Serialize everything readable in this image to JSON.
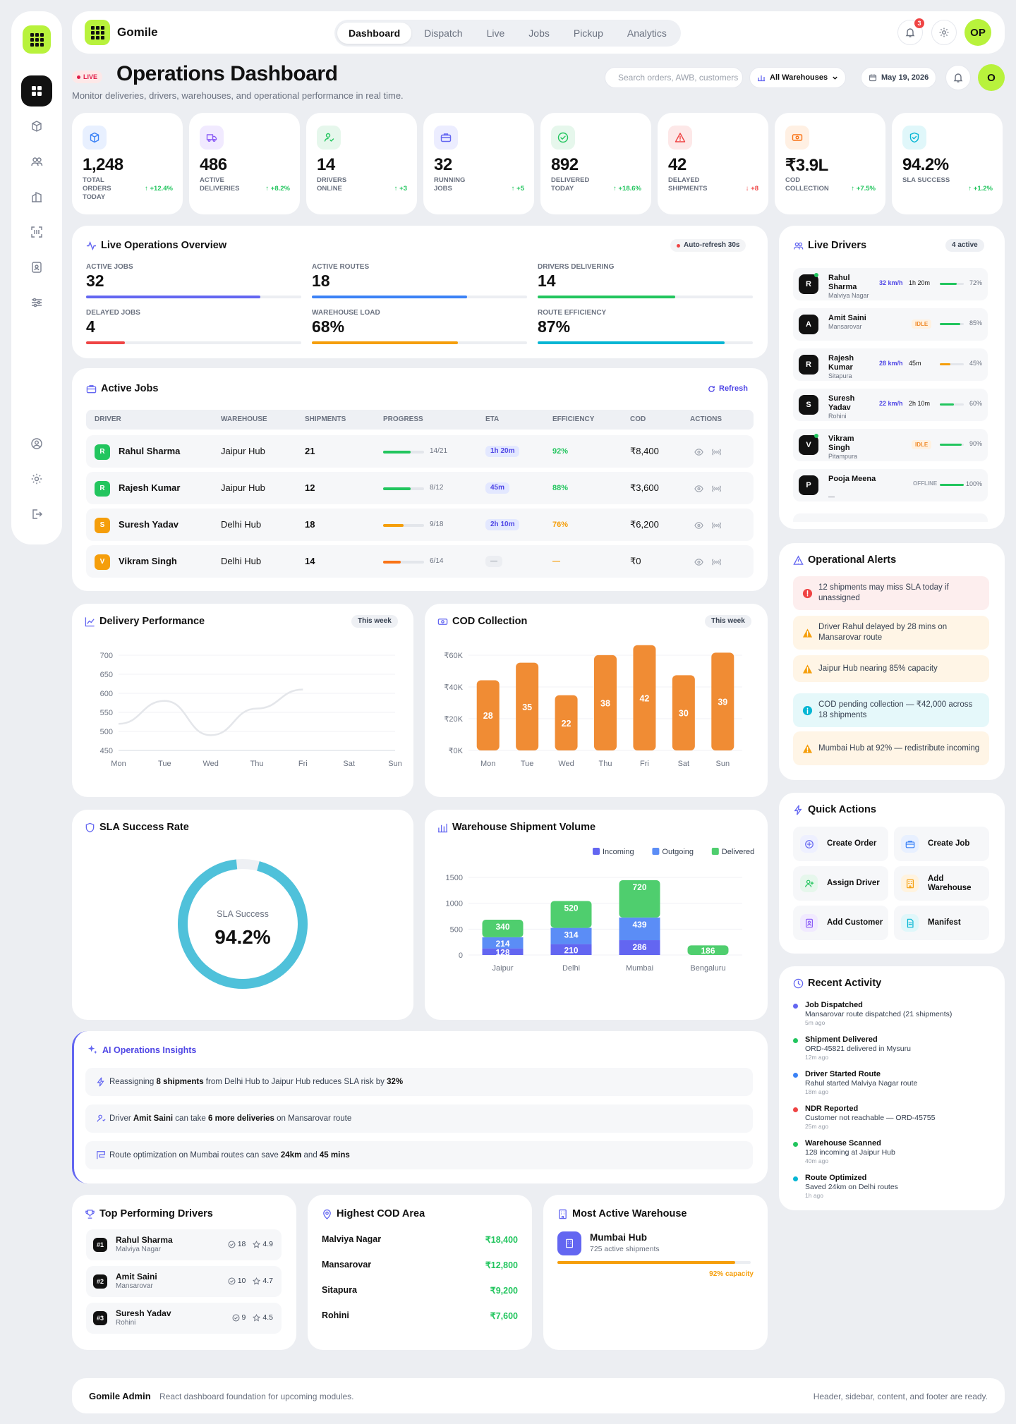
{
  "brand": "Gomile",
  "nav": [
    "Dashboard",
    "Dispatch",
    "Live",
    "Jobs",
    "Pickup",
    "Analytics"
  ],
  "notif_count": "3",
  "user_initials": "OP",
  "user_initial_short": "O",
  "live_label": "LIVE",
  "title": "Operations Dashboard",
  "subtitle": "Monitor deliveries, drivers, warehouses, and operational performance in real time.",
  "search_placeholder": "Search orders, AWB, customers",
  "warehouse_select": "All Warehouses",
  "date": "May 19, 2026",
  "kpis": [
    {
      "value": "1,248",
      "label": "Total Orders Today",
      "delta": "↑ +12.4%",
      "color": "#3b82f6",
      "bg": "#e8f0ff",
      "icon": "box-icon"
    },
    {
      "value": "486",
      "label": "Active Deliveries",
      "delta": "↑ +8.2%",
      "color": "#8b5cf6",
      "bg": "#f1eaff",
      "icon": "truck-icon"
    },
    {
      "value": "14",
      "label": "Drivers Online",
      "delta": "↑ +3",
      "color": "#22c55e",
      "bg": "#e6f7ec",
      "icon": "user-check-icon"
    },
    {
      "value": "32",
      "label": "Running Jobs",
      "delta": "↑ +5",
      "color": "#6366f1",
      "bg": "#ecedff",
      "icon": "briefcase-icon"
    },
    {
      "value": "892",
      "label": "Delivered Today",
      "delta": "↑ +18.6%",
      "color": "#22c55e",
      "bg": "#e6f7ec",
      "icon": "check-circle-icon"
    },
    {
      "value": "42",
      "label": "Delayed Shipments",
      "delta": "↓ +8",
      "color": "#ef4444",
      "bg": "#fde8e8",
      "icon": "alert-triangle-icon"
    },
    {
      "value": "₹3.9L",
      "label": "COD Collection",
      "delta": "↑ +7.5%",
      "color": "#f97316",
      "bg": "#fff0e3",
      "icon": "cash-icon"
    },
    {
      "value": "94.2%",
      "label": "SLA Success",
      "delta": "↑ +1.2%",
      "color": "#06b6d4",
      "bg": "#e0f7fa",
      "icon": "shield-check-icon"
    }
  ],
  "overview": {
    "title": "Live Operations Overview",
    "refresh": "Auto-refresh 30s",
    "items": [
      {
        "label": "Active Jobs",
        "value": "32",
        "pct": 0.81,
        "color": "#6366f1"
      },
      {
        "label": "Active Routes",
        "value": "18",
        "pct": 0.72,
        "color": "#3b82f6"
      },
      {
        "label": "Drivers Delivering",
        "value": "14",
        "pct": 0.64,
        "color": "#22c55e"
      },
      {
        "label": "Delayed Jobs",
        "value": "4",
        "pct": 0.18,
        "color": "#ef4444"
      },
      {
        "label": "Warehouse Load",
        "value": "68%",
        "pct": 0.68,
        "color": "#f59e0b"
      },
      {
        "label": "Route Efficiency",
        "value": "87%",
        "pct": 0.87,
        "color": "#06b6d4"
      }
    ]
  },
  "jobs": {
    "title": "Active Jobs",
    "refresh": "Refresh",
    "headers": [
      "DRIVER",
      "WAREHOUSE",
      "SHIPMENTS",
      "PROGRESS",
      "ETA",
      "EFFICIENCY",
      "COD",
      "ACTIONS"
    ],
    "rows": [
      {
        "initial": "R",
        "avatar": "#22c55e",
        "driver": "Rahul Sharma",
        "warehouse": "Jaipur Hub",
        "shipments": "21",
        "progress": "14/21",
        "pct": 0.67,
        "pcolor": "#22c55e",
        "eta": "1h 20m",
        "eff": "92%",
        "effcolor": "#22c55e",
        "cod": "₹8,400"
      },
      {
        "initial": "R",
        "avatar": "#22c55e",
        "driver": "Rajesh Kumar",
        "warehouse": "Jaipur Hub",
        "shipments": "12",
        "progress": "8/12",
        "pct": 0.67,
        "pcolor": "#22c55e",
        "eta": "45m",
        "eff": "88%",
        "effcolor": "#22c55e",
        "cod": "₹3,600"
      },
      {
        "initial": "S",
        "avatar": "#f59e0b",
        "driver": "Suresh Yadav",
        "warehouse": "Delhi Hub",
        "shipments": "18",
        "progress": "9/18",
        "pct": 0.5,
        "pcolor": "#f59e0b",
        "eta": "2h 10m",
        "eff": "76%",
        "effcolor": "#f59e0b",
        "cod": "₹6,200"
      },
      {
        "initial": "V",
        "avatar": "#f59e0b",
        "driver": "Vikram Singh",
        "warehouse": "Delhi Hub",
        "shipments": "14",
        "progress": "6/14",
        "pct": 0.43,
        "pcolor": "#f97316",
        "eta": "—",
        "eff": "—",
        "effcolor": "#f59e0b",
        "cod": "₹0"
      }
    ]
  },
  "drivers": {
    "title": "Live Drivers",
    "badge": "4 active",
    "rows": [
      {
        "initial": "R",
        "name": "Rahul Sharma",
        "area": "Malviya Nagar",
        "speed": "32 km/h",
        "time": "1h 20m",
        "pct": 0.72,
        "pctlabel": "72%",
        "status": "",
        "color": "#22c55e",
        "online": true
      },
      {
        "initial": "A",
        "name": "Amit Saini",
        "area": "Mansarovar",
        "speed": "",
        "time": "",
        "pct": 0.85,
        "pctlabel": "85%",
        "status": "IDLE",
        "color": "#22c55e",
        "online": false
      },
      {
        "initial": "R",
        "name": "Rajesh Kumar",
        "area": "Sitapura",
        "speed": "28 km/h",
        "time": "45m",
        "pct": 0.45,
        "pctlabel": "45%",
        "status": "",
        "color": "#f59e0b",
        "online": false
      },
      {
        "initial": "S",
        "name": "Suresh Yadav",
        "area": "Rohini",
        "speed": "22 km/h",
        "time": "2h 10m",
        "pct": 0.6,
        "pctlabel": "60%",
        "status": "",
        "color": "#22c55e",
        "online": false
      },
      {
        "initial": "V",
        "name": "Vikram Singh",
        "area": "Pitampura",
        "speed": "",
        "time": "",
        "pct": 0.9,
        "pctlabel": "90%",
        "status": "IDLE",
        "color": "#22c55e",
        "online": true
      },
      {
        "initial": "P",
        "name": "Pooja Meena",
        "area": "—",
        "speed": "",
        "time": "",
        "pct": 1.0,
        "pctlabel": "100%",
        "status": "OFFLINE",
        "color": "#22c55e",
        "online": false
      }
    ]
  },
  "alerts": {
    "title": "Operational Alerts",
    "items": [
      {
        "text": "12 shipments may miss SLA today if unassigned",
        "type": "error"
      },
      {
        "text": "Driver Rahul delayed by 28 mins on Mansarovar route",
        "type": "warn"
      },
      {
        "text": "Jaipur Hub nearing 85% capacity",
        "type": "warn"
      },
      {
        "text": "COD pending collection — ₹42,000 across 18 shipments",
        "type": "info"
      },
      {
        "text": "Mumbai Hub at 92% — redistribute incoming",
        "type": "warn"
      }
    ]
  },
  "quick": {
    "title": "Quick Actions",
    "items": [
      {
        "label": "Create Order",
        "icon": "plus-circle-icon",
        "color": "#6366f1",
        "bg": "#eef0ff"
      },
      {
        "label": "Create Job",
        "icon": "briefcase-icon",
        "color": "#3b82f6",
        "bg": "#e8f0ff"
      },
      {
        "label": "Assign Driver",
        "icon": "user-plus-icon",
        "color": "#22c55e",
        "bg": "#e6f7ec"
      },
      {
        "label": "Add Warehouse",
        "icon": "building-icon",
        "color": "#f59e0b",
        "bg": "#fff3df"
      },
      {
        "label": "Add Customer",
        "icon": "id-card-icon",
        "color": "#8b5cf6",
        "bg": "#f1eaff"
      },
      {
        "label": "Manifest",
        "icon": "document-icon",
        "color": "#06b6d4",
        "bg": "#e0f7fa"
      }
    ]
  },
  "activity": {
    "title": "Recent Activity",
    "items": [
      {
        "title": "Job Dispatched",
        "desc": "Mansarovar route dispatched (21 shipments)",
        "ago": "5m ago",
        "color": "#6366f1"
      },
      {
        "title": "Shipment Delivered",
        "desc": "ORD-45821 delivered in Mysuru",
        "ago": "12m ago",
        "color": "#22c55e"
      },
      {
        "title": "Driver Started Route",
        "desc": "Rahul started Malviya Nagar route",
        "ago": "18m ago",
        "color": "#3b82f6"
      },
      {
        "title": "NDR Reported",
        "desc": "Customer not reachable — ORD-45755",
        "ago": "25m ago",
        "color": "#ef4444"
      },
      {
        "title": "Warehouse Scanned",
        "desc": "128 incoming at Jaipur Hub",
        "ago": "40m ago",
        "color": "#22c55e"
      },
      {
        "title": "Route Optimized",
        "desc": "Saved 24km on Delhi routes",
        "ago": "1h ago",
        "color": "#06b6d4"
      }
    ]
  },
  "delivery_perf": {
    "title": "Delivery Performance",
    "tag": "This week"
  },
  "cod_chart": {
    "title": "COD Collection",
    "tag": "This week"
  },
  "sla": {
    "title": "SLA Success Rate",
    "label": "SLA Success",
    "value": "94.2%",
    "pct": 0.942
  },
  "warehouse_vol": {
    "title": "Warehouse Shipment Volume"
  },
  "chart_data": [
    {
      "type": "line",
      "title": "Delivery Performance",
      "categories": [
        "Mon",
        "Tue",
        "Wed",
        "Thu",
        "Fri",
        "Sat",
        "Sun"
      ],
      "values": [
        520,
        580,
        490,
        560,
        610,
        null,
        null
      ],
      "ylim": [
        450,
        700
      ],
      "yticks": [
        450,
        500,
        550,
        600,
        650,
        700
      ]
    },
    {
      "type": "bar",
      "title": "COD Collection",
      "categories": [
        "Mon",
        "Tue",
        "Wed",
        "Thu",
        "Fri",
        "Sat",
        "Sun"
      ],
      "values": [
        28,
        35,
        22,
        38,
        42,
        30,
        39
      ],
      "yticks": [
        "₹0K",
        "₹20K",
        "₹40K",
        "₹60K"
      ],
      "ylim": [
        0,
        60
      ],
      "color": "#f08c34"
    },
    {
      "type": "bar",
      "stacked": true,
      "title": "Warehouse Shipment Volume",
      "categories": [
        "Jaipur",
        "Delhi",
        "Mumbai",
        "Bengaluru"
      ],
      "series": [
        {
          "name": "Incoming",
          "values": [
            128,
            210,
            286,
            null
          ],
          "color": "#6366f1"
        },
        {
          "name": "Outgoing",
          "values": [
            214,
            314,
            439,
            null
          ],
          "color": "#5b8df6"
        },
        {
          "name": "Delivered",
          "values": [
            340,
            520,
            720,
            186
          ],
          "color": "#4fce6e"
        }
      ],
      "ylim": [
        0,
        1500
      ],
      "yticks": [
        0,
        500,
        1000,
        1500
      ]
    }
  ],
  "insights": {
    "title": "AI Operations Insights",
    "items": [
      {
        "p1": "Reassigning ",
        "b1": "8 shipments",
        "p2": " from Delhi Hub to Jaipur Hub reduces SLA risk by ",
        "b2": "32%",
        "p3": ""
      },
      {
        "p1": "Driver ",
        "b1": "Amit Saini",
        "p2": " can take ",
        "b2": "6 more deliveries",
        "p3": " on Mansarovar route"
      },
      {
        "p1": "Route optimization on Mumbai routes can save ",
        "b1": "24km",
        "p2": " and ",
        "b2": "45 mins",
        "p3": ""
      }
    ]
  },
  "top_drivers": {
    "title": "Top Performing Drivers",
    "items": [
      {
        "rank": "#1",
        "name": "Rahul Sharma",
        "area": "Malviya Nagar",
        "jobs": "18",
        "rating": "4.9"
      },
      {
        "rank": "#2",
        "name": "Amit Saini",
        "area": "Mansarovar",
        "jobs": "10",
        "rating": "4.7"
      },
      {
        "rank": "#3",
        "name": "Suresh Yadav",
        "area": "Rohini",
        "jobs": "9",
        "rating": "4.5"
      }
    ]
  },
  "cod_area": {
    "title": "Highest COD Area",
    "items": [
      {
        "area": "Malviya Nagar",
        "amount": "₹18,400"
      },
      {
        "area": "Mansarovar",
        "amount": "₹12,800"
      },
      {
        "area": "Sitapura",
        "amount": "₹9,200"
      },
      {
        "area": "Rohini",
        "amount": "₹7,600"
      }
    ]
  },
  "warehouse_active": {
    "title": "Most Active Warehouse",
    "name": "Mumbai Hub",
    "sub": "725 active shipments",
    "capacity": "92% capacity",
    "pct": 0.92
  },
  "footer": {
    "brand": "Gomile Admin",
    "desc": "React dashboard foundation for upcoming modules.",
    "right": "Header, sidebar, content, and footer are ready."
  }
}
